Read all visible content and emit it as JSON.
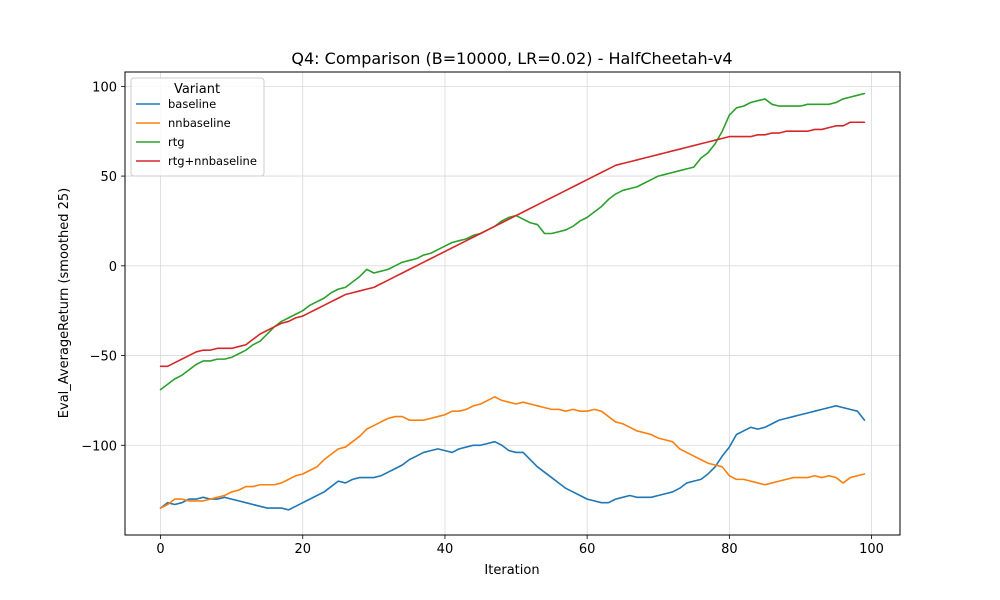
{
  "chart_data": {
    "type": "line",
    "title": "Q4: Comparison (B=10000, LR=0.02) - HalfCheetah-v4",
    "xlabel": "Iteration",
    "ylabel": "Eval_AverageReturn (smoothed 25)",
    "xlim": [
      -5,
      104
    ],
    "ylim": [
      -150,
      108
    ],
    "xticks": [
      0,
      20,
      40,
      60,
      80,
      100
    ],
    "yticks": [
      -100,
      -50,
      0,
      50,
      100
    ],
    "xtick_labels": [
      "0",
      "20",
      "40",
      "60",
      "80",
      "100"
    ],
    "ytick_labels": [
      "−100",
      "−50",
      "0",
      "50",
      "100"
    ],
    "grid": true,
    "legend": {
      "title": "Variant",
      "placement": "top-left"
    },
    "series": [
      {
        "name": "baseline",
        "color": "#1f77b4",
        "values": [
          -135,
          -132,
          -133,
          -132,
          -130,
          -130,
          -129,
          -130,
          -130,
          -129,
          -130,
          -131,
          -132,
          -133,
          -134,
          -135,
          -135,
          -135,
          -136,
          -134,
          -132,
          -130,
          -128,
          -126,
          -123,
          -120,
          -121,
          -119,
          -118,
          -118,
          -118,
          -117,
          -115,
          -113,
          -111,
          -108,
          -106,
          -104,
          -103,
          -102,
          -103,
          -104,
          -102,
          -101,
          -100,
          -100,
          -99,
          -98,
          -100,
          -103,
          -104,
          -104,
          -108,
          -112,
          -115,
          -118,
          -121,
          -124,
          -126,
          -128,
          -130,
          -131,
          -132,
          -132,
          -130,
          -129,
          -128,
          -129,
          -129,
          -129,
          -128,
          -127,
          -126,
          -124,
          -121,
          -120,
          -119,
          -116,
          -112,
          -106,
          -101,
          -94,
          -92,
          -90,
          -91,
          -90,
          -88,
          -86,
          -85,
          -84,
          -83,
          -82,
          -81,
          -80,
          -79,
          -78,
          -79,
          -80,
          -81,
          -86
        ]
      },
      {
        "name": "nnbaseline",
        "color": "#ff7f0e",
        "values": [
          -135,
          -133,
          -130,
          -130,
          -131,
          -131,
          -131,
          -130,
          -129,
          -128,
          -126,
          -125,
          -123,
          -123,
          -122,
          -122,
          -122,
          -121,
          -119,
          -117,
          -116,
          -114,
          -112,
          -108,
          -105,
          -102,
          -101,
          -98,
          -95,
          -91,
          -89,
          -87,
          -85,
          -84,
          -84,
          -86,
          -86,
          -86,
          -85,
          -84,
          -83,
          -81,
          -81,
          -80,
          -78,
          -77,
          -75,
          -73,
          -75,
          -76,
          -77,
          -76,
          -77,
          -78,
          -79,
          -80,
          -80,
          -81,
          -80,
          -81,
          -81,
          -80,
          -81,
          -84,
          -87,
          -88,
          -90,
          -92,
          -93,
          -94,
          -96,
          -97,
          -98,
          -102,
          -104,
          -106,
          -108,
          -110,
          -111,
          -112,
          -117,
          -119,
          -119,
          -120,
          -121,
          -122,
          -121,
          -120,
          -119,
          -118,
          -118,
          -118,
          -117,
          -118,
          -117,
          -118,
          -121,
          -118,
          -117,
          -116
        ]
      },
      {
        "name": "rtg",
        "color": "#2ca02c",
        "values": [
          -69,
          -66,
          -63,
          -61,
          -58,
          -55,
          -53,
          -53,
          -52,
          -52,
          -51,
          -49,
          -47,
          -44,
          -42,
          -38,
          -34,
          -31,
          -29,
          -27,
          -25,
          -22,
          -20,
          -18,
          -15,
          -13,
          -12,
          -9,
          -6,
          -2,
          -4,
          -3,
          -2,
          0,
          2,
          3,
          4,
          6,
          7,
          9,
          11,
          13,
          14,
          15,
          17,
          18,
          20,
          22,
          25,
          27,
          28,
          26,
          24,
          23,
          18,
          18,
          19,
          20,
          22,
          25,
          27,
          30,
          33,
          37,
          40,
          42,
          43,
          44,
          46,
          48,
          50,
          51,
          52,
          53,
          54,
          55,
          60,
          63,
          68,
          75,
          84,
          88,
          89,
          91,
          92,
          93,
          90,
          89,
          89,
          89,
          89,
          90,
          90,
          90,
          90,
          91,
          93,
          94,
          95,
          96
        ]
      },
      {
        "name": "rtg+nnbaseline",
        "color": "#d62728",
        "values": [
          -56,
          -56,
          -54,
          -52,
          -50,
          -48,
          -47,
          -47,
          -46,
          -46,
          -46,
          -45,
          -44,
          -41,
          -38,
          -36,
          -34,
          -32,
          -31,
          -29,
          -28,
          -26,
          -24,
          -22,
          -20,
          -18,
          -16,
          -15,
          -14,
          -13,
          -12,
          -10,
          -8,
          -6,
          -4,
          -2,
          0,
          2,
          4,
          6,
          8,
          10,
          12,
          14,
          16,
          18,
          20,
          22,
          24,
          26,
          28,
          30,
          32,
          34,
          36,
          38,
          40,
          42,
          44,
          46,
          48,
          50,
          52,
          54,
          56,
          57,
          58,
          59,
          60,
          61,
          62,
          63,
          64,
          65,
          66,
          67,
          68,
          69,
          70,
          71,
          72,
          72,
          72,
          72,
          73,
          73,
          74,
          74,
          75,
          75,
          75,
          75,
          76,
          76,
          77,
          78,
          78,
          80,
          80,
          80
        ]
      }
    ]
  }
}
